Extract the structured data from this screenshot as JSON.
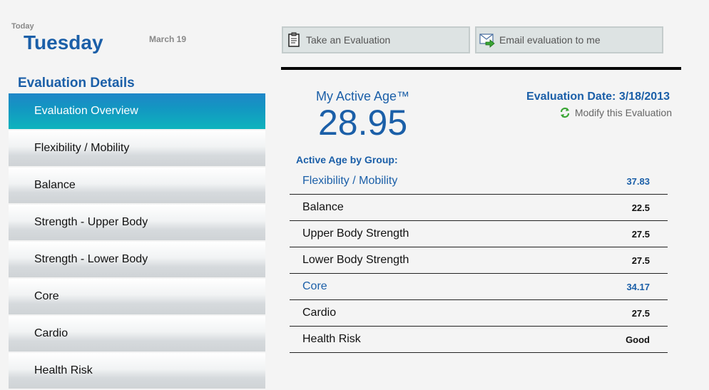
{
  "header": {
    "today_label": "Today",
    "day_name": "Tuesday",
    "date": "March 19"
  },
  "sidebar": {
    "title": "Evaluation Details",
    "items": [
      {
        "label": "Evaluation Overview",
        "active": true
      },
      {
        "label": "Flexibility / Mobility",
        "active": false
      },
      {
        "label": "Balance",
        "active": false
      },
      {
        "label": "Strength - Upper Body",
        "active": false
      },
      {
        "label": "Strength - Lower Body",
        "active": false
      },
      {
        "label": "Core",
        "active": false
      },
      {
        "label": "Cardio",
        "active": false
      },
      {
        "label": "Health Risk",
        "active": false
      }
    ]
  },
  "toolbar": {
    "take_label": "Take an Evaluation",
    "take_icon": "clipboard-icon",
    "email_label": "Email evaluation to me",
    "email_icon": "email-icon"
  },
  "main": {
    "active_age_title": "My Active Age™",
    "active_age_value": "28.95",
    "evaluation_date": "Evaluation Date: 3/18/2013",
    "modify_label": "Modify this Evaluation",
    "modify_icon": "refresh-icon",
    "group_title": "Active Age by Group:",
    "groups": [
      {
        "name": "Flexibility / Mobility",
        "value": "37.83",
        "highlight": true
      },
      {
        "name": "Balance",
        "value": "22.5",
        "highlight": false
      },
      {
        "name": "Upper Body Strength",
        "value": "27.5",
        "highlight": false
      },
      {
        "name": "Lower Body Strength",
        "value": "27.5",
        "highlight": false
      },
      {
        "name": "Core",
        "value": "34.17",
        "highlight": true
      },
      {
        "name": "Cardio",
        "value": "27.5",
        "highlight": false
      },
      {
        "name": "Health Risk",
        "value": "Good",
        "highlight": false
      }
    ]
  },
  "colors": {
    "accent": "#1b5fa8",
    "nav_active_start": "#1f86c8",
    "nav_active_end": "#0eb3bd"
  }
}
